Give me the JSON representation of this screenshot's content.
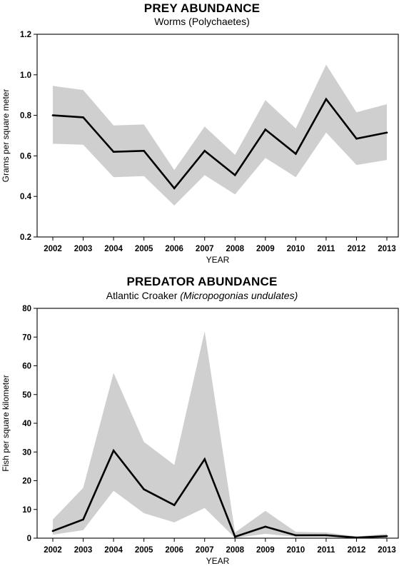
{
  "chart_data": [
    {
      "type": "line",
      "title": "PREY ABUNDANCE",
      "subtitle": "Worms (Polychaetes)",
      "xlabel": "YEAR",
      "ylabel": "Grams per square meter",
      "x": [
        2002,
        2003,
        2004,
        2005,
        2006,
        2007,
        2008,
        2009,
        2010,
        2011,
        2012,
        2013
      ],
      "series": [
        {
          "values": [
            0.8,
            0.79,
            0.62,
            0.625,
            0.44,
            0.625,
            0.505,
            0.73,
            0.61,
            0.88,
            0.685,
            0.715
          ],
          "lower": [
            0.66,
            0.655,
            0.495,
            0.5,
            0.355,
            0.505,
            0.41,
            0.59,
            0.495,
            0.715,
            0.555,
            0.58
          ],
          "upper": [
            0.945,
            0.925,
            0.75,
            0.755,
            0.53,
            0.745,
            0.605,
            0.875,
            0.735,
            1.05,
            0.815,
            0.855
          ]
        }
      ],
      "ylim": [
        0.2,
        1.2
      ],
      "yticks": [
        "0.2",
        "0.4",
        "0.6",
        "0.8",
        "1.0",
        "1.2"
      ],
      "grid": false
    },
    {
      "type": "line",
      "title": "PREDATOR ABUNDANCE",
      "subtitle": "Atlantic Croaker",
      "subtitle_italic": "(Micropogonias undulates)",
      "xlabel": "YEAR",
      "ylabel": "Fish per square kilometer",
      "x": [
        2002,
        2003,
        2004,
        2005,
        2006,
        2007,
        2008,
        2009,
        2010,
        2011,
        2012,
        2013
      ],
      "series": [
        {
          "values": [
            2.5,
            6.5,
            30.5,
            17,
            11.5,
            27.5,
            0.5,
            4,
            1,
            1,
            0.2,
            0.7
          ],
          "lower": [
            1.2,
            2.8,
            16.5,
            8.7,
            5.5,
            10.5,
            0.1,
            1.5,
            0.5,
            0.6,
            0.0,
            0.2
          ],
          "upper": [
            6.5,
            17.5,
            57.5,
            33.5,
            25.5,
            72,
            2.0,
            9.5,
            2.2,
            2.0,
            0.6,
            1.5
          ]
        }
      ],
      "ylim": [
        0,
        80
      ],
      "yticks": [
        "0",
        "10",
        "20",
        "30",
        "40",
        "50",
        "60",
        "70",
        "80"
      ],
      "grid": false
    }
  ],
  "colors": {
    "band": "#cfcfcf",
    "line": "#000000",
    "axis": "#000000"
  }
}
